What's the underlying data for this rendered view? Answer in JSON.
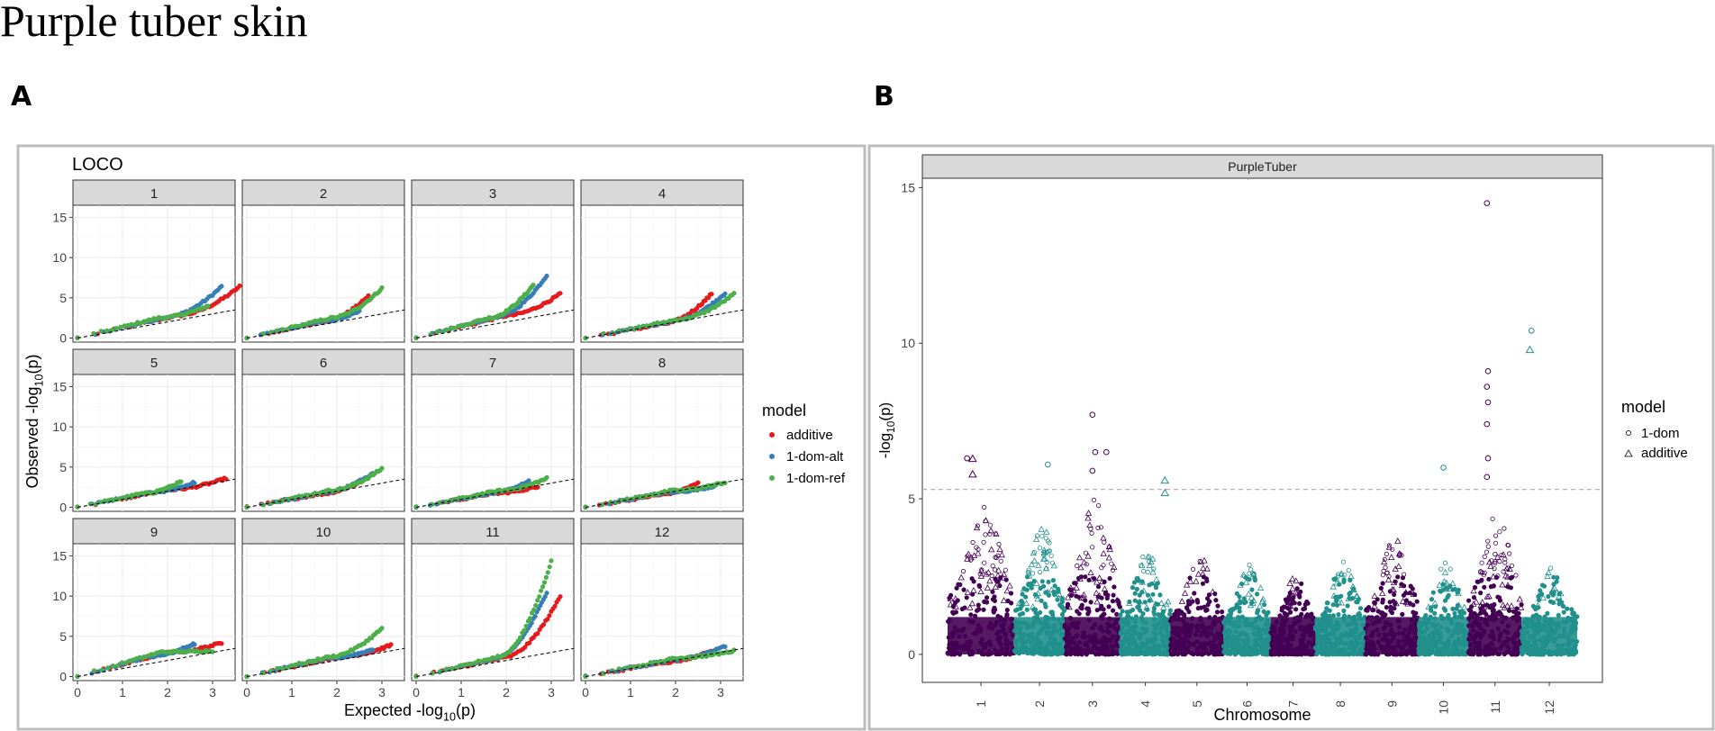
{
  "page_title": "Purple tuber skin",
  "panels": {
    "a_letter": "A",
    "b_letter": "B"
  },
  "colors": {
    "additive": "#E41A1C",
    "dom_alt": "#377EB8",
    "dom_ref": "#4DAF4A",
    "purple": "#440154",
    "teal": "#21908C",
    "strip_bg": "#D9D9D9",
    "grid": "#EBEBEB"
  },
  "chart_data": [
    {
      "type": "scatter",
      "subtype": "qq-plot-facets",
      "title": "LOCO",
      "xlabel": "Expected -log10(p)",
      "ylabel": "Observed -log10(p)",
      "xlim": [
        -0.1,
        3.5
      ],
      "ylim": [
        -0.5,
        16.5
      ],
      "xticks": [
        "0",
        "1",
        "2",
        "3"
      ],
      "yticks": [
        "0",
        "5",
        "10",
        "15"
      ],
      "legend": {
        "title": "model",
        "position": "right",
        "entries": [
          "additive",
          "1-dom-alt",
          "1-dom-ref"
        ]
      },
      "facets": [
        {
          "label": "1",
          "max": {
            "additive": [
              3.6,
              6.4
            ],
            "1-dom-alt": [
              3.2,
              6.4
            ],
            "1-dom-ref": [
              2.9,
              4.0
            ]
          },
          "slope": 1.35
        },
        {
          "label": "2",
          "max": {
            "additive": [
              2.7,
              5.2
            ],
            "1-dom-alt": [
              2.5,
              3.3
            ],
            "1-dom-ref": [
              3.0,
              6.2
            ]
          },
          "slope": 1.3
        },
        {
          "label": "3",
          "max": {
            "additive": [
              3.2,
              5.5
            ],
            "1-dom-alt": [
              2.9,
              7.8
            ],
            "1-dom-ref": [
              2.6,
              6.6
            ]
          },
          "slope": 1.5
        },
        {
          "label": "4",
          "max": {
            "additive": [
              2.8,
              5.5
            ],
            "1-dom-alt": [
              3.1,
              5.6
            ],
            "1-dom-ref": [
              3.3,
              5.5
            ]
          },
          "slope": 1.1
        },
        {
          "label": "5",
          "max": {
            "additive": [
              3.3,
              3.6
            ],
            "1-dom-alt": [
              2.6,
              3.1
            ],
            "1-dom-ref": [
              2.3,
              3.2
            ]
          },
          "slope": 1.15
        },
        {
          "label": "6",
          "max": {
            "additive": [
              2.6,
              3.4
            ],
            "1-dom-alt": [
              2.8,
              4.3
            ],
            "1-dom-ref": [
              3.0,
              4.8
            ]
          },
          "slope": 1.1
        },
        {
          "label": "7",
          "max": {
            "additive": [
              2.7,
              2.6
            ],
            "1-dom-alt": [
              2.5,
              3.2
            ],
            "1-dom-ref": [
              2.9,
              3.6
            ]
          },
          "slope": 1.1
        },
        {
          "label": "8",
          "max": {
            "additive": [
              2.5,
              3.0
            ],
            "1-dom-alt": [
              2.9,
              2.7
            ],
            "1-dom-ref": [
              3.1,
              3.1
            ]
          },
          "slope": 1.05
        },
        {
          "label": "9",
          "max": {
            "additive": [
              3.2,
              4.2
            ],
            "1-dom-alt": [
              2.6,
              4.1
            ],
            "1-dom-ref": [
              3.0,
              3.2
            ]
          },
          "slope": 1.6
        },
        {
          "label": "10",
          "max": {
            "additive": [
              3.2,
              3.9
            ],
            "1-dom-alt": [
              2.8,
              3.4
            ],
            "1-dom-ref": [
              3.0,
              6.0
            ]
          },
          "slope": 1.3
        },
        {
          "label": "11",
          "max": {
            "additive": [
              3.2,
              10.0
            ],
            "1-dom-alt": [
              2.9,
              10.5
            ],
            "1-dom-ref": [
              3.0,
              14.3
            ]
          },
          "slope": 1.3
        },
        {
          "label": "12",
          "max": {
            "additive": [
              2.8,
              3.2
            ],
            "1-dom-alt": [
              3.1,
              3.8
            ],
            "1-dom-ref": [
              3.3,
              3.2
            ]
          },
          "slope": 1.1
        }
      ]
    },
    {
      "type": "scatter",
      "subtype": "manhattan",
      "strip": "PurpleTuber",
      "xlabel": "Chromosome",
      "ylabel": "-log10(p)",
      "ylim": [
        -0.9,
        15.3
      ],
      "yticks": [
        "0",
        "5",
        "10",
        "15"
      ],
      "threshold": 5.3,
      "legend": {
        "title": "model",
        "position": "right",
        "entries": [
          "1-dom",
          "additive"
        ]
      },
      "chromosomes": [
        {
          "label": "1",
          "start": 0.0,
          "end": 1.2,
          "color": "purple",
          "peak": 4.8
        },
        {
          "label": "2",
          "start": 1.2,
          "end": 2.1,
          "color": "teal",
          "peak": 4.2
        },
        {
          "label": "3",
          "start": 2.1,
          "end": 3.1,
          "color": "purple",
          "peak": 5.0
        },
        {
          "label": "4",
          "start": 3.1,
          "end": 4.0,
          "color": "teal",
          "peak": 3.6
        },
        {
          "label": "5",
          "start": 4.0,
          "end": 4.95,
          "color": "purple",
          "peak": 3.2
        },
        {
          "label": "6",
          "start": 4.95,
          "end": 5.8,
          "color": "teal",
          "peak": 3.0
        },
        {
          "label": "7",
          "start": 5.8,
          "end": 6.6,
          "color": "purple",
          "peak": 2.6
        },
        {
          "label": "8",
          "start": 6.6,
          "end": 7.5,
          "color": "teal",
          "peak": 3.0
        },
        {
          "label": "9",
          "start": 7.5,
          "end": 8.45,
          "color": "purple",
          "peak": 3.8
        },
        {
          "label": "10",
          "start": 8.45,
          "end": 9.35,
          "color": "teal",
          "peak": 3.0
        },
        {
          "label": "11",
          "start": 9.35,
          "end": 10.3,
          "color": "purple",
          "peak": 4.8
        },
        {
          "label": "12",
          "start": 10.3,
          "end": 11.3,
          "color": "teal",
          "peak": 2.8
        }
      ],
      "top_hits": [
        {
          "x": 0.35,
          "y": 6.3,
          "model": "1-dom"
        },
        {
          "x": 0.45,
          "y": 6.3,
          "model": "additive"
        },
        {
          "x": 0.45,
          "y": 5.8,
          "model": "additive"
        },
        {
          "x": 1.8,
          "y": 6.1,
          "model": "1-dom"
        },
        {
          "x": 2.6,
          "y": 7.7,
          "model": "1-dom"
        },
        {
          "x": 2.65,
          "y": 6.5,
          "model": "1-dom"
        },
        {
          "x": 2.85,
          "y": 6.5,
          "model": "1-dom"
        },
        {
          "x": 2.6,
          "y": 5.9,
          "model": "1-dom"
        },
        {
          "x": 3.9,
          "y": 5.6,
          "model": "additive"
        },
        {
          "x": 3.9,
          "y": 5.2,
          "model": "additive"
        },
        {
          "x": 8.9,
          "y": 6.0,
          "model": "1-dom"
        },
        {
          "x": 9.68,
          "y": 14.5,
          "model": "1-dom"
        },
        {
          "x": 9.7,
          "y": 9.1,
          "model": "1-dom"
        },
        {
          "x": 9.68,
          "y": 8.6,
          "model": "1-dom"
        },
        {
          "x": 9.7,
          "y": 8.1,
          "model": "1-dom"
        },
        {
          "x": 9.68,
          "y": 7.4,
          "model": "1-dom"
        },
        {
          "x": 9.7,
          "y": 6.3,
          "model": "1-dom"
        },
        {
          "x": 9.68,
          "y": 5.7,
          "model": "1-dom"
        },
        {
          "x": 10.48,
          "y": 10.4,
          "model": "1-dom"
        },
        {
          "x": 10.45,
          "y": 9.8,
          "model": "additive"
        }
      ]
    }
  ]
}
